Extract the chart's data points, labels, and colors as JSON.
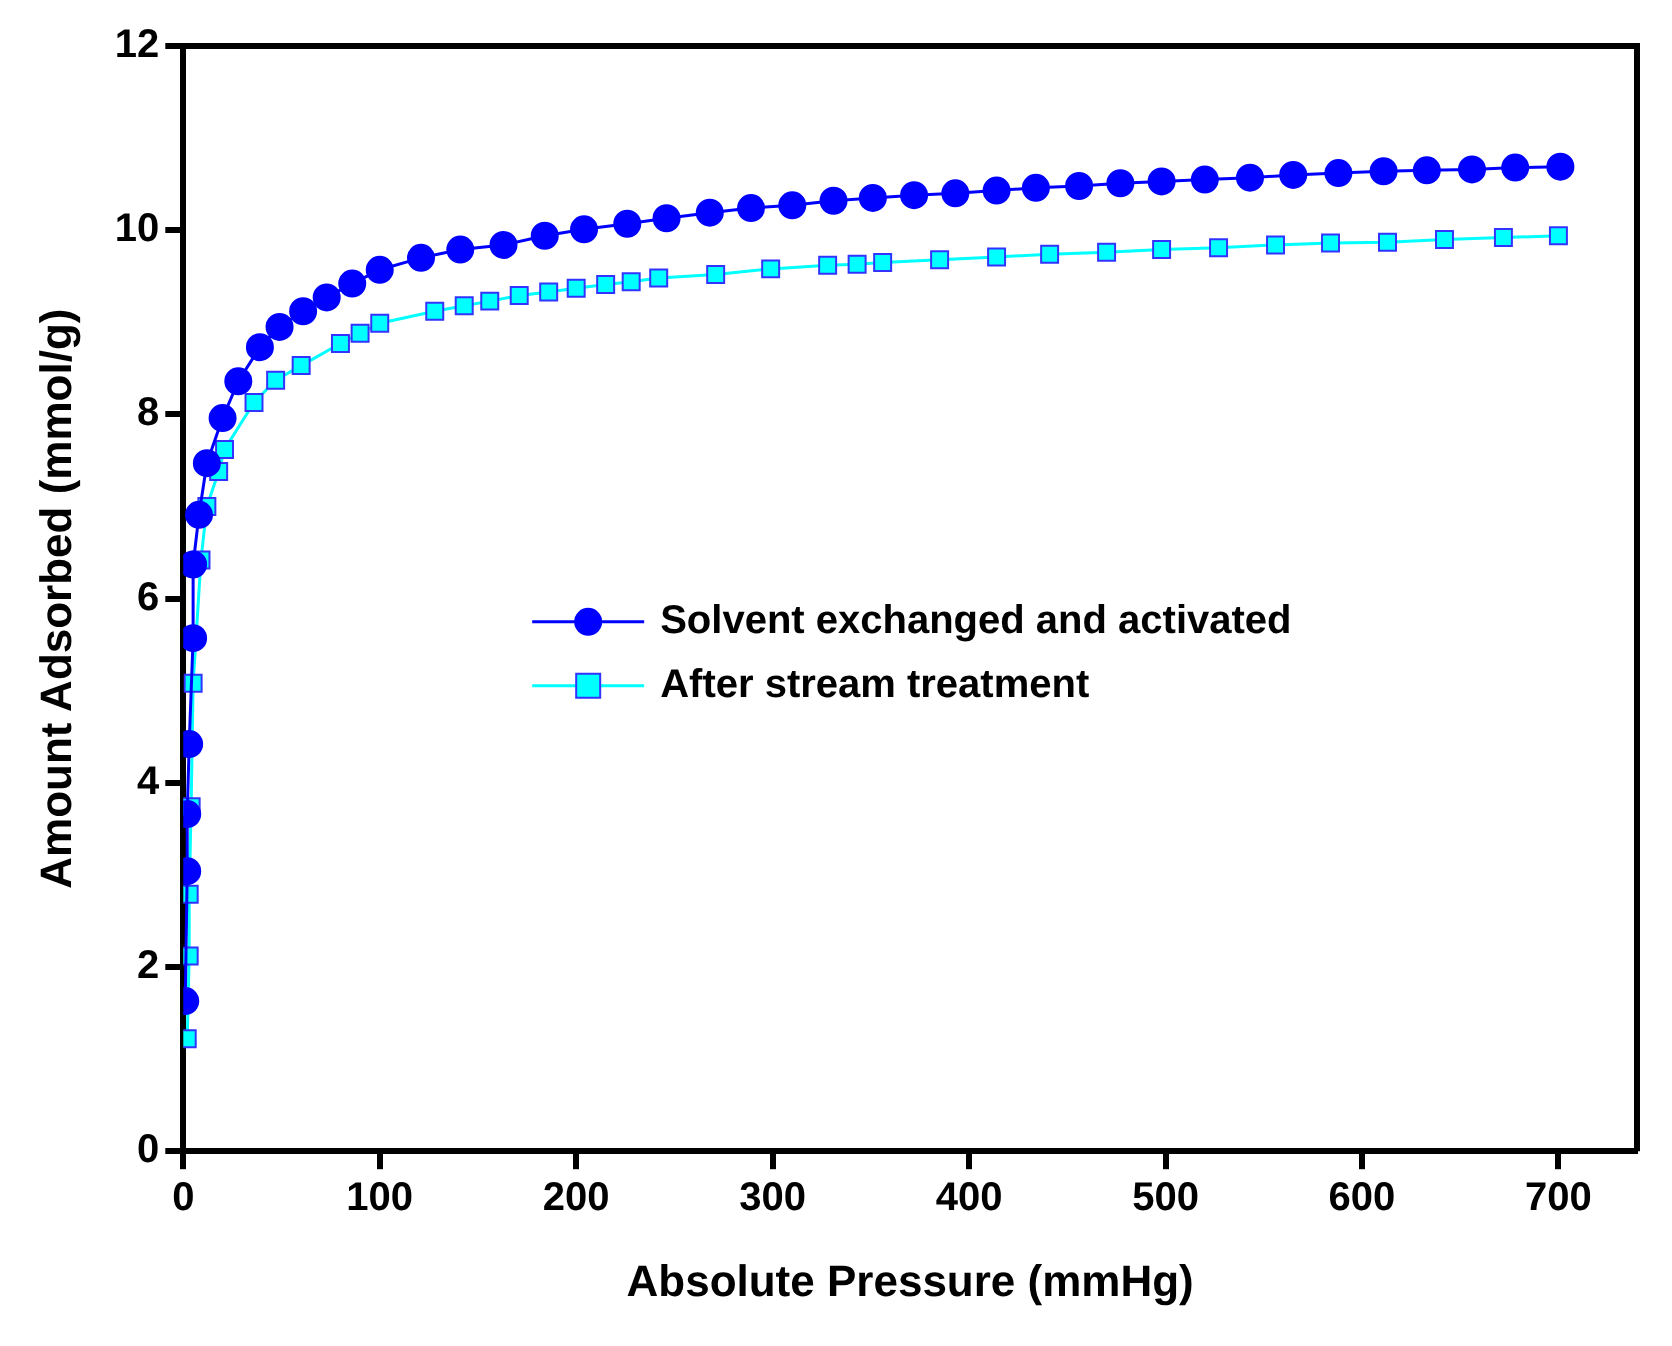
{
  "chart_data": {
    "type": "line",
    "xlabel": "Absolute Pressure (mmHg)",
    "ylabel": "Amount Adsorbed (mmol/g)",
    "xlim": [
      0,
      740
    ],
    "xticks": [
      0,
      100,
      200,
      300,
      400,
      500,
      600,
      700
    ],
    "ylim": [
      0,
      12
    ],
    "yticks": [
      0,
      2,
      4,
      6,
      8,
      10,
      12
    ],
    "grid": false,
    "legend": "right",
    "line_style": "solid",
    "series": [
      {
        "name": "Solvent exchanged and activated",
        "color": "#0000ff",
        "marker": "circle",
        "x": [
          1,
          2,
          2,
          3,
          5,
          5,
          8,
          12,
          20,
          28,
          39,
          49,
          61,
          73,
          86,
          100,
          121,
          141,
          163,
          184,
          204,
          226,
          246,
          268,
          289,
          310,
          331,
          351,
          372,
          393,
          414,
          434,
          456,
          477,
          498,
          520,
          543,
          565,
          588,
          611,
          633,
          656,
          678,
          701
        ],
        "values": [
          1.63,
          3.04,
          3.66,
          4.42,
          5.57,
          6.37,
          6.91,
          7.47,
          7.96,
          8.36,
          8.73,
          8.95,
          9.12,
          9.27,
          9.42,
          9.57,
          9.7,
          9.79,
          9.84,
          9.94,
          10.01,
          10.07,
          10.13,
          10.19,
          10.24,
          10.27,
          10.32,
          10.35,
          10.38,
          10.4,
          10.43,
          10.46,
          10.48,
          10.51,
          10.53,
          10.55,
          10.57,
          10.6,
          10.62,
          10.64,
          10.65,
          10.66,
          10.68,
          10.69
        ]
      },
      {
        "name": "After stream treatment",
        "color": "#00ffff",
        "marker": "square",
        "x": [
          2,
          3,
          3,
          4,
          5,
          9,
          12,
          18,
          21,
          36,
          47,
          60,
          80,
          90,
          100,
          128,
          143,
          156,
          171,
          186,
          200,
          215,
          228,
          242,
          271,
          299,
          328,
          343,
          356,
          385,
          414,
          441,
          470,
          498,
          527,
          556,
          584,
          613,
          642,
          672,
          700
        ],
        "values": [
          1.22,
          2.12,
          2.79,
          3.74,
          5.08,
          6.42,
          7.0,
          7.38,
          7.62,
          8.13,
          8.37,
          8.53,
          8.77,
          8.88,
          8.99,
          9.12,
          9.18,
          9.23,
          9.29,
          9.33,
          9.37,
          9.41,
          9.44,
          9.48,
          9.52,
          9.58,
          9.62,
          9.63,
          9.65,
          9.68,
          9.71,
          9.74,
          9.76,
          9.79,
          9.81,
          9.84,
          9.86,
          9.87,
          9.9,
          9.92,
          9.94
        ]
      }
    ]
  }
}
